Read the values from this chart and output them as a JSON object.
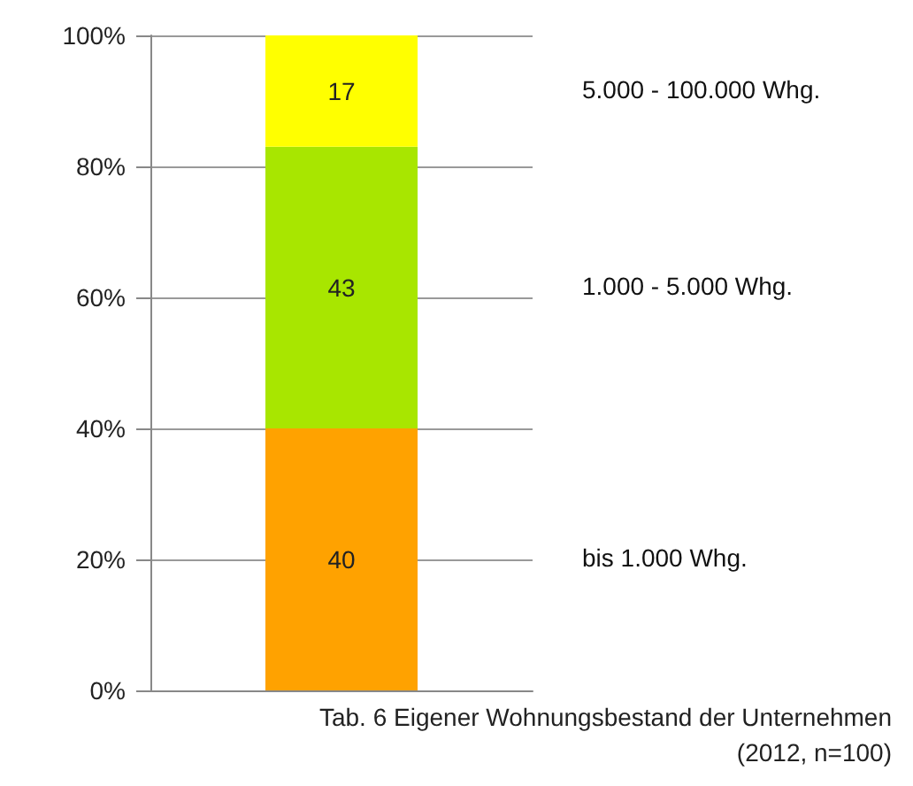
{
  "chart_data": {
    "type": "bar",
    "stacked": true,
    "categories": [
      null
    ],
    "series": [
      {
        "name": "bis 1.000 Whg.",
        "color": "#ffa200",
        "values": [
          40
        ]
      },
      {
        "name": "1.000 - 5.000 Whg.",
        "color": "#a8e600",
        "values": [
          43
        ]
      },
      {
        "name": "5.000 - 100.000 Whg.",
        "color": "#ffff00",
        "values": [
          17
        ]
      }
    ],
    "ylim": [
      0,
      100
    ],
    "yticks": [
      {
        "value": 0,
        "label": "0%"
      },
      {
        "value": 20,
        "label": "20%"
      },
      {
        "value": 40,
        "label": "40%"
      },
      {
        "value": 60,
        "label": "60%"
      },
      {
        "value": 80,
        "label": "80%"
      },
      {
        "value": 100,
        "label": "100%"
      }
    ],
    "grid": "y",
    "legend": false,
    "data_labels": true,
    "annotations": [
      "Tab. 6 Eigener Wohnungsbestand der Unternehmen",
      "(2012, n=100)"
    ]
  }
}
